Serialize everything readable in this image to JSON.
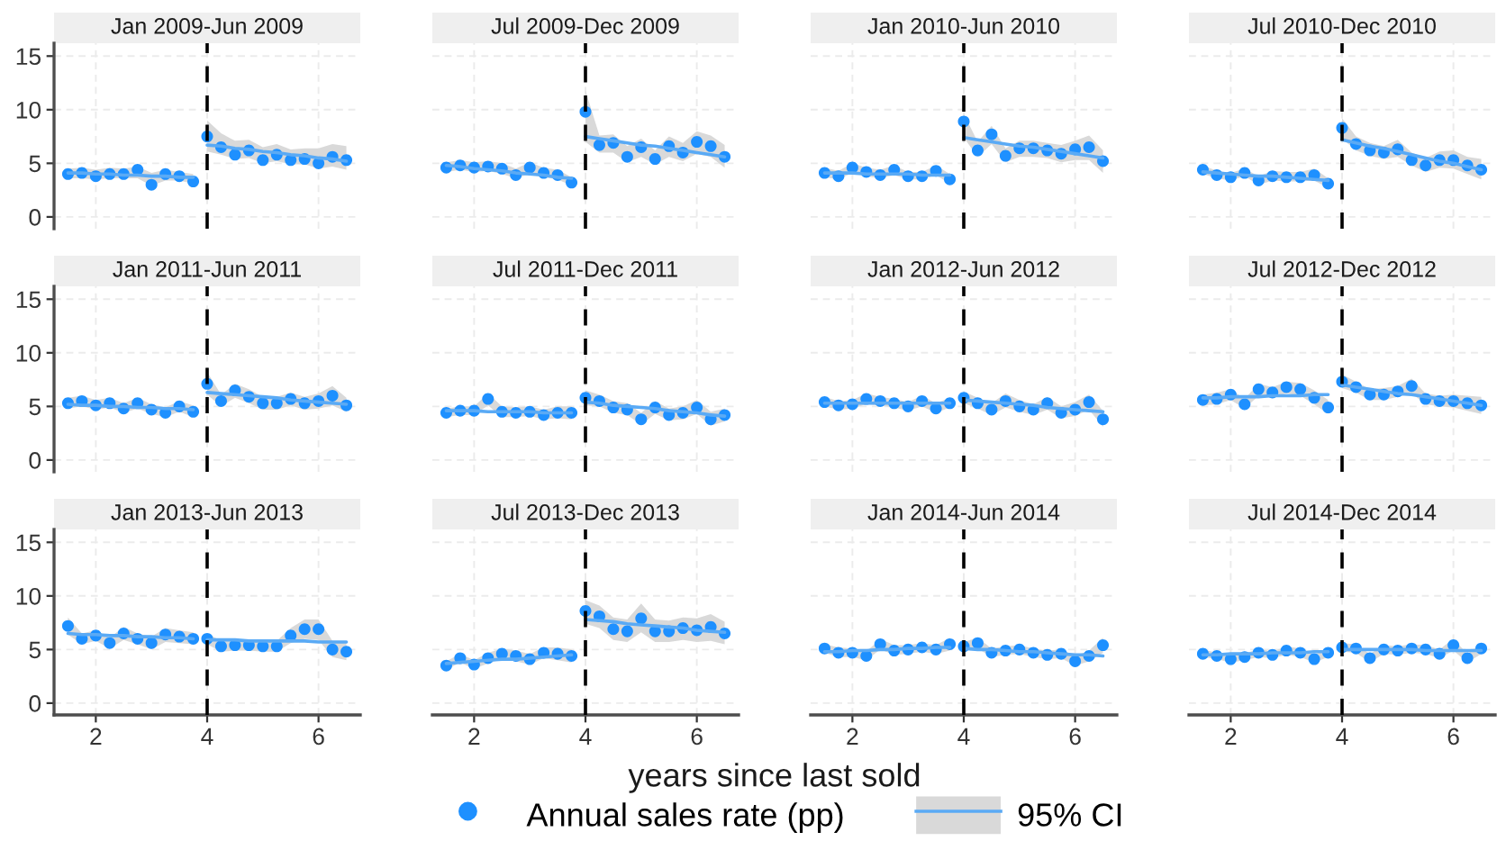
{
  "chart_data": [
    {
      "type": "scatter",
      "title": "Jan 2009-Jun 2009",
      "legend": "bottom",
      "xlim": [
        1.25,
        6.75
      ],
      "ylim": [
        -1.1,
        16.2
      ],
      "xticks": [
        2,
        4,
        6
      ],
      "yticks": [
        0,
        5,
        10,
        15
      ],
      "grid": true,
      "tick_labels": "y",
      "ref_lines": [
        {
          "axis": "x",
          "value": 4,
          "color": "#000000",
          "line_style": "dashed"
        }
      ],
      "series": [
        {
          "name": "Annual sales rate (pp)",
          "color": "#1e90ff",
          "marker": "circle",
          "x": [
            1.5,
            1.75,
            2,
            2.25,
            2.5,
            2.75,
            3,
            3.25,
            3.5,
            3.75,
            4,
            4.25,
            4.5,
            4.75,
            5,
            5.25,
            5.5,
            5.75,
            6,
            6.25,
            6.5
          ],
          "values": [
            4.0,
            4.1,
            3.8,
            4.0,
            4.0,
            4.4,
            3.0,
            4.0,
            3.8,
            3.3,
            7.5,
            6.5,
            5.8,
            6.2,
            5.3,
            5.8,
            5.3,
            5.4,
            5.0,
            5.6,
            5.3
          ]
        },
        {
          "name": "95% CI",
          "type": "line",
          "color": "#5aaaf5",
          "x": [
            1.5,
            1.75,
            2,
            2.25,
            2.5,
            2.75,
            3,
            3.25,
            3.5,
            3.75
          ],
          "values": [
            4.1,
            4.1,
            4.0,
            4.0,
            3.9,
            3.9,
            3.8,
            3.8,
            3.7,
            3.7
          ],
          "lower": [
            3.6,
            3.6,
            3.5,
            3.6,
            3.6,
            3.6,
            2.9,
            3.4,
            3.4,
            3.1
          ],
          "upper": [
            4.5,
            4.6,
            4.4,
            4.6,
            4.5,
            4.7,
            4.1,
            4.4,
            4.2,
            4.0
          ]
        },
        {
          "type": "line",
          "color": "#5aaaf5",
          "x": [
            4,
            4.25,
            4.5,
            4.75,
            5,
            5.25,
            5.5,
            5.75,
            6,
            6.25,
            6.5
          ],
          "values": [
            6.7,
            6.6,
            6.4,
            6.3,
            6.1,
            6.0,
            5.8,
            5.7,
            5.5,
            5.4,
            5.2
          ],
          "lower": [
            6.1,
            5.8,
            5.4,
            5.5,
            5.0,
            5.2,
            4.9,
            4.9,
            4.5,
            4.7,
            4.4
          ],
          "upper": [
            9.0,
            7.8,
            7.1,
            7.2,
            6.5,
            6.8,
            6.3,
            6.4,
            6.4,
            6.8,
            6.6
          ]
        }
      ]
    },
    {
      "type": "scatter",
      "title": "Jul 2009-Dec 2009",
      "xlim": [
        1.25,
        6.75
      ],
      "ylim": [
        -1.1,
        16.2
      ],
      "xticks": [
        2,
        4,
        6
      ],
      "yticks": [
        0,
        5,
        10,
        15
      ],
      "grid": true,
      "tick_labels": false,
      "ref_lines": [
        {
          "axis": "x",
          "value": 4,
          "color": "#000000",
          "line_style": "dashed"
        }
      ],
      "series": [
        {
          "color": "#1e90ff",
          "marker": "circle",
          "x": [
            1.5,
            1.75,
            2,
            2.25,
            2.5,
            2.75,
            3,
            3.25,
            3.5,
            3.75,
            4,
            4.25,
            4.5,
            4.75,
            5,
            5.25,
            5.5,
            5.75,
            6,
            6.25,
            6.5
          ],
          "values": [
            4.6,
            4.8,
            4.6,
            4.7,
            4.5,
            3.9,
            4.6,
            4.1,
            3.9,
            3.2,
            9.8,
            6.7,
            6.9,
            5.6,
            6.5,
            5.4,
            6.6,
            6.0,
            7.0,
            6.6,
            5.6
          ]
        },
        {
          "type": "line",
          "color": "#5aaaf5",
          "x": [
            1.5,
            1.75,
            2,
            2.25,
            2.5,
            2.75,
            3,
            3.25,
            3.5,
            3.75
          ],
          "values": [
            4.8,
            4.7,
            4.5,
            4.4,
            4.3,
            4.1,
            4.0,
            3.9,
            3.7,
            3.6
          ],
          "lower": [
            4.2,
            4.4,
            4.2,
            4.3,
            4.0,
            3.6,
            4.0,
            3.7,
            3.5,
            2.9
          ],
          "upper": [
            5.1,
            5.3,
            5.1,
            5.2,
            5.0,
            4.5,
            5.1,
            4.6,
            4.4,
            3.7
          ]
        },
        {
          "type": "line",
          "color": "#5aaaf5",
          "x": [
            4,
            4.25,
            4.5,
            4.75,
            5,
            5.25,
            5.5,
            5.75,
            6,
            6.25,
            6.5
          ],
          "values": [
            7.5,
            7.3,
            7.1,
            6.9,
            6.7,
            6.6,
            6.4,
            6.2,
            6.0,
            5.8,
            5.6
          ],
          "lower": [
            7.0,
            6.0,
            6.0,
            5.1,
            5.6,
            4.9,
            5.6,
            5.2,
            5.9,
            5.6,
            4.6
          ],
          "upper": [
            11.8,
            7.6,
            7.7,
            6.6,
            7.3,
            6.2,
            7.5,
            6.9,
            8.0,
            7.6,
            6.7
          ]
        }
      ]
    },
    {
      "type": "scatter",
      "title": "Jan 2010-Jun 2010",
      "xlim": [
        1.25,
        6.75
      ],
      "ylim": [
        -1.1,
        16.2
      ],
      "xticks": [
        2,
        4,
        6
      ],
      "yticks": [
        0,
        5,
        10,
        15
      ],
      "grid": true,
      "tick_labels": false,
      "ref_lines": [
        {
          "axis": "x",
          "value": 4,
          "color": "#000000",
          "line_style": "dashed"
        }
      ],
      "series": [
        {
          "color": "#1e90ff",
          "marker": "circle",
          "x": [
            1.5,
            1.75,
            2,
            2.25,
            2.5,
            2.75,
            3,
            3.25,
            3.5,
            3.75,
            4,
            4.25,
            4.5,
            4.75,
            5,
            5.25,
            5.5,
            5.75,
            6,
            6.25,
            6.5
          ],
          "values": [
            4.1,
            3.8,
            4.6,
            4.2,
            3.9,
            4.4,
            3.8,
            3.8,
            4.3,
            3.5,
            8.9,
            6.2,
            7.7,
            5.7,
            6.4,
            6.4,
            6.2,
            5.9,
            6.3,
            6.5,
            5.2
          ]
        },
        {
          "type": "line",
          "color": "#5aaaf5",
          "x": [
            1.5,
            1.75,
            2,
            2.25,
            2.5,
            2.75,
            3,
            3.25,
            3.5,
            3.75
          ],
          "values": [
            4.1,
            4.1,
            4.1,
            4.0,
            4.0,
            4.0,
            4.0,
            3.9,
            3.9,
            3.9
          ],
          "lower": [
            3.7,
            3.5,
            4.1,
            3.8,
            3.6,
            3.9,
            3.5,
            3.5,
            3.9,
            3.1
          ],
          "upper": [
            4.6,
            4.3,
            5.0,
            4.6,
            4.4,
            4.8,
            4.2,
            4.2,
            4.8,
            4.0
          ]
        },
        {
          "type": "line",
          "color": "#5aaaf5",
          "x": [
            4,
            4.25,
            4.5,
            4.75,
            5,
            5.25,
            5.5,
            5.75,
            6,
            6.25,
            6.5
          ],
          "values": [
            7.4,
            7.2,
            7.0,
            6.8,
            6.6,
            6.5,
            6.3,
            6.1,
            5.9,
            5.7,
            5.5
          ],
          "lower": [
            7.4,
            5.6,
            6.8,
            5.1,
            5.6,
            5.6,
            5.5,
            5.1,
            5.3,
            5.3,
            4.1
          ],
          "upper": [
            9.6,
            7.0,
            8.5,
            6.4,
            7.1,
            7.1,
            6.9,
            6.7,
            7.1,
            7.6,
            6.2
          ]
        }
      ]
    },
    {
      "type": "scatter",
      "title": "Jul 2010-Dec 2010",
      "xlim": [
        1.25,
        6.75
      ],
      "ylim": [
        -1.1,
        16.2
      ],
      "xticks": [
        2,
        4,
        6
      ],
      "yticks": [
        0,
        5,
        10,
        15
      ],
      "grid": true,
      "tick_labels": false,
      "ref_lines": [
        {
          "axis": "x",
          "value": 4,
          "color": "#000000",
          "line_style": "dashed"
        }
      ],
      "series": [
        {
          "color": "#1e90ff",
          "marker": "circle",
          "x": [
            1.5,
            1.75,
            2,
            2.25,
            2.5,
            2.75,
            3,
            3.25,
            3.5,
            3.75,
            4,
            4.25,
            4.5,
            4.75,
            5,
            5.25,
            5.5,
            5.75,
            6,
            6.25,
            6.5
          ],
          "values": [
            4.4,
            3.9,
            3.7,
            4.1,
            3.4,
            3.8,
            3.7,
            3.7,
            3.9,
            3.1,
            8.3,
            6.8,
            6.2,
            6.0,
            6.3,
            5.3,
            4.8,
            5.3,
            5.3,
            4.8,
            4.4
          ]
        },
        {
          "type": "line",
          "color": "#5aaaf5",
          "x": [
            1.5,
            1.75,
            2,
            2.25,
            2.5,
            2.75,
            3,
            3.25,
            3.5,
            3.75
          ],
          "values": [
            4.2,
            4.1,
            4.0,
            3.9,
            3.8,
            3.8,
            3.7,
            3.6,
            3.5,
            3.4
          ],
          "lower": [
            4.0,
            3.6,
            3.4,
            3.8,
            3.0,
            3.4,
            3.3,
            3.3,
            3.4,
            2.7
          ],
          "upper": [
            4.8,
            4.3,
            4.1,
            4.5,
            3.8,
            4.3,
            4.2,
            4.2,
            4.5,
            3.6
          ]
        },
        {
          "type": "line",
          "color": "#5aaaf5",
          "x": [
            4,
            4.25,
            4.5,
            4.75,
            5,
            5.25,
            5.5,
            5.75,
            6,
            6.25,
            6.5
          ],
          "values": [
            7.2,
            6.9,
            6.6,
            6.4,
            6.1,
            5.8,
            5.5,
            5.2,
            5.0,
            4.7,
            4.4
          ],
          "lower": [
            7.3,
            6.2,
            5.7,
            5.4,
            5.6,
            4.8,
            4.2,
            4.6,
            4.5,
            4.0,
            3.5
          ],
          "upper": [
            9.2,
            7.5,
            6.9,
            6.6,
            7.2,
            6.0,
            5.5,
            6.1,
            6.2,
            5.6,
            5.4
          ]
        }
      ]
    },
    {
      "type": "scatter",
      "title": "Jan 2011-Jun 2011",
      "xlim": [
        1.25,
        6.75
      ],
      "ylim": [
        -1.1,
        16.2
      ],
      "xticks": [
        2,
        4,
        6
      ],
      "yticks": [
        0,
        5,
        10,
        15
      ],
      "grid": true,
      "tick_labels": "y",
      "ref_lines": [
        {
          "axis": "x",
          "value": 4,
          "color": "#000000",
          "line_style": "dashed"
        }
      ],
      "series": [
        {
          "color": "#1e90ff",
          "marker": "circle",
          "x": [
            1.5,
            1.75,
            2,
            2.25,
            2.5,
            2.75,
            3,
            3.25,
            3.5,
            3.75,
            4,
            4.25,
            4.5,
            4.75,
            5,
            5.25,
            5.5,
            5.75,
            6,
            6.25,
            6.5
          ],
          "values": [
            5.3,
            5.5,
            5.1,
            5.3,
            4.8,
            5.3,
            4.7,
            4.4,
            5.0,
            4.5,
            7.1,
            5.5,
            6.5,
            5.9,
            5.3,
            5.3,
            5.7,
            5.3,
            5.5,
            6.0,
            5.1
          ]
        },
        {
          "type": "line",
          "color": "#5aaaf5",
          "x": [
            1.5,
            1.75,
            2,
            2.25,
            2.5,
            2.75,
            3,
            3.25,
            3.5,
            3.75
          ],
          "values": [
            5.2,
            5.1,
            5.1,
            5.0,
            5.0,
            4.9,
            4.9,
            4.8,
            4.8,
            4.7
          ],
          "lower": [
            4.8,
            5.0,
            4.7,
            4.9,
            4.4,
            4.8,
            4.3,
            4.0,
            4.5,
            4.0
          ],
          "upper": [
            5.8,
            6.0,
            5.6,
            5.8,
            5.3,
            5.8,
            5.2,
            4.9,
            5.5,
            5.1
          ]
        },
        {
          "type": "line",
          "color": "#5aaaf5",
          "x": [
            4,
            4.25,
            4.5,
            4.75,
            5,
            5.25,
            5.5,
            5.75,
            6,
            6.25,
            6.5
          ],
          "values": [
            6.3,
            6.2,
            6.1,
            6.0,
            5.9,
            5.8,
            5.6,
            5.5,
            5.4,
            5.3,
            5.2
          ],
          "lower": [
            6.1,
            5.0,
            5.8,
            5.3,
            4.7,
            4.7,
            5.1,
            4.7,
            4.8,
            5.1,
            4.5
          ],
          "upper": [
            8.2,
            6.1,
            7.1,
            6.6,
            5.9,
            5.9,
            6.3,
            5.9,
            6.2,
            6.9,
            5.8
          ]
        }
      ]
    },
    {
      "type": "scatter",
      "title": "Jul 2011-Dec 2011",
      "xlim": [
        1.25,
        6.75
      ],
      "ylim": [
        -1.1,
        16.2
      ],
      "xticks": [
        2,
        4,
        6
      ],
      "yticks": [
        0,
        5,
        10,
        15
      ],
      "grid": true,
      "tick_labels": false,
      "ref_lines": [
        {
          "axis": "x",
          "value": 4,
          "color": "#000000",
          "line_style": "dashed"
        }
      ],
      "series": [
        {
          "color": "#1e90ff",
          "marker": "circle",
          "x": [
            1.5,
            1.75,
            2,
            2.25,
            2.5,
            2.75,
            3,
            3.25,
            3.5,
            3.75,
            4,
            4.25,
            4.5,
            4.75,
            5,
            5.25,
            5.5,
            5.75,
            6,
            6.25,
            6.5
          ],
          "values": [
            4.4,
            4.6,
            4.6,
            5.7,
            4.5,
            4.4,
            4.5,
            4.2,
            4.4,
            4.4,
            5.8,
            5.5,
            4.9,
            4.7,
            3.8,
            4.9,
            4.2,
            4.4,
            4.9,
            3.8,
            4.2
          ]
        },
        {
          "type": "line",
          "color": "#5aaaf5",
          "x": [
            1.5,
            1.75,
            2,
            2.25,
            2.5,
            2.75,
            3,
            3.25,
            3.5,
            3.75
          ],
          "values": [
            4.6,
            4.6,
            4.6,
            4.5,
            4.5,
            4.5,
            4.5,
            4.4,
            4.4,
            4.4
          ],
          "lower": [
            4.0,
            4.2,
            4.2,
            5.1,
            4.0,
            4.0,
            4.1,
            3.8,
            3.9,
            3.8
          ],
          "upper": [
            4.8,
            5.0,
            5.0,
            6.2,
            5.0,
            4.9,
            5.0,
            4.7,
            5.0,
            5.0
          ]
        },
        {
          "type": "line",
          "color": "#5aaaf5",
          "x": [
            4,
            4.25,
            4.5,
            4.75,
            5,
            5.25,
            5.5,
            5.75,
            6,
            6.25,
            6.5
          ],
          "values": [
            5.4,
            5.3,
            5.1,
            5.0,
            4.9,
            4.8,
            4.6,
            4.5,
            4.4,
            4.2,
            4.1
          ],
          "lower": [
            5.1,
            5.0,
            4.4,
            4.2,
            3.3,
            4.3,
            3.7,
            3.8,
            4.3,
            3.2,
            3.6
          ],
          "upper": [
            6.5,
            6.1,
            5.5,
            5.3,
            4.4,
            5.5,
            4.8,
            5.0,
            5.6,
            4.5,
            4.8
          ]
        }
      ]
    },
    {
      "type": "scatter",
      "title": "Jan 2012-Jun 2012",
      "xlim": [
        1.25,
        6.75
      ],
      "ylim": [
        -1.1,
        16.2
      ],
      "xticks": [
        2,
        4,
        6
      ],
      "yticks": [
        0,
        5,
        10,
        15
      ],
      "grid": true,
      "tick_labels": false,
      "ref_lines": [
        {
          "axis": "x",
          "value": 4,
          "color": "#000000",
          "line_style": "dashed"
        }
      ],
      "series": [
        {
          "color": "#1e90ff",
          "marker": "circle",
          "x": [
            1.5,
            1.75,
            2,
            2.25,
            2.5,
            2.75,
            3,
            3.25,
            3.5,
            3.75,
            4,
            4.25,
            4.5,
            4.75,
            5,
            5.25,
            5.5,
            5.75,
            6,
            6.25,
            6.5
          ],
          "values": [
            5.4,
            5.1,
            5.2,
            5.7,
            5.5,
            5.3,
            5.0,
            5.5,
            4.8,
            5.3,
            5.8,
            5.3,
            4.7,
            5.5,
            5.0,
            4.7,
            5.3,
            4.4,
            4.7,
            5.4,
            3.8
          ]
        },
        {
          "type": "line",
          "color": "#5aaaf5",
          "x": [
            1.5,
            1.75,
            2,
            2.25,
            2.5,
            2.75,
            3,
            3.25,
            3.5,
            3.75
          ],
          "values": [
            5.3,
            5.3,
            5.3,
            5.3,
            5.3,
            5.3,
            5.3,
            5.3,
            5.3,
            5.3
          ],
          "lower": [
            5.0,
            4.7,
            4.8,
            5.2,
            5.1,
            4.9,
            4.6,
            5.0,
            4.4,
            4.9
          ],
          "upper": [
            5.9,
            5.5,
            5.6,
            6.2,
            5.9,
            5.7,
            5.4,
            6.0,
            5.3,
            5.8
          ]
        },
        {
          "type": "line",
          "color": "#5aaaf5",
          "x": [
            4,
            4.25,
            4.5,
            4.75,
            5,
            5.25,
            5.5,
            5.75,
            6,
            6.25,
            6.5
          ],
          "values": [
            5.6,
            5.5,
            5.4,
            5.3,
            5.2,
            5.1,
            4.9,
            4.8,
            4.7,
            4.6,
            4.5
          ],
          "lower": [
            5.3,
            4.8,
            4.2,
            4.9,
            4.5,
            4.2,
            4.7,
            3.9,
            4.1,
            4.7,
            3.1
          ],
          "upper": [
            6.4,
            5.8,
            5.3,
            6.2,
            5.6,
            5.2,
            5.9,
            5.0,
            5.4,
            6.1,
            4.6
          ]
        }
      ]
    },
    {
      "type": "scatter",
      "title": "Jul 2012-Dec 2012",
      "xlim": [
        1.25,
        6.75
      ],
      "ylim": [
        -1.1,
        16.2
      ],
      "xticks": [
        2,
        4,
        6
      ],
      "yticks": [
        0,
        5,
        10,
        15
      ],
      "grid": true,
      "tick_labels": false,
      "ref_lines": [
        {
          "axis": "x",
          "value": 4,
          "color": "#000000",
          "line_style": "dashed"
        }
      ],
      "series": [
        {
          "color": "#1e90ff",
          "marker": "circle",
          "x": [
            1.5,
            1.75,
            2,
            2.25,
            2.5,
            2.75,
            3,
            3.25,
            3.5,
            3.75,
            4,
            4.25,
            4.5,
            4.75,
            5,
            5.25,
            5.5,
            5.75,
            6,
            6.25,
            6.5
          ],
          "values": [
            5.6,
            5.7,
            6.1,
            5.2,
            6.6,
            6.3,
            6.8,
            6.6,
            5.8,
            4.9,
            7.3,
            6.8,
            6.1,
            6.1,
            6.4,
            6.9,
            5.7,
            5.5,
            5.5,
            5.3,
            5.1
          ]
        },
        {
          "type": "line",
          "color": "#5aaaf5",
          "x": [
            1.5,
            1.75,
            2,
            2.25,
            2.5,
            2.75,
            3,
            3.25,
            3.5,
            3.75
          ],
          "values": [
            5.8,
            5.8,
            5.9,
            5.9,
            5.9,
            6.0,
            6.0,
            6.0,
            6.1,
            6.1
          ],
          "lower": [
            5.1,
            5.2,
            5.6,
            4.8,
            6.0,
            5.8,
            6.2,
            6.0,
            5.2,
            4.3
          ],
          "upper": [
            6.1,
            6.3,
            6.6,
            5.7,
            7.1,
            6.8,
            7.3,
            7.2,
            6.5,
            5.6
          ]
        },
        {
          "type": "line",
          "color": "#5aaaf5",
          "x": [
            4,
            4.25,
            4.5,
            4.75,
            5,
            5.25,
            5.5,
            5.75,
            6,
            6.25,
            6.5
          ],
          "values": [
            7.0,
            6.8,
            6.6,
            6.4,
            6.2,
            6.1,
            5.9,
            5.7,
            5.5,
            5.3,
            5.1
          ],
          "lower": [
            6.7,
            6.3,
            5.6,
            5.6,
            5.9,
            6.2,
            5.2,
            5.0,
            4.9,
            4.6,
            4.3
          ],
          "upper": [
            8.0,
            7.3,
            6.6,
            6.7,
            6.9,
            7.6,
            6.2,
            6.0,
            6.1,
            6.0,
            5.9
          ]
        }
      ]
    },
    {
      "type": "scatter",
      "title": "Jan 2013-Jun 2013",
      "xlim": [
        1.25,
        6.75
      ],
      "ylim": [
        -1.1,
        16.2
      ],
      "xticks": [
        2,
        4,
        6
      ],
      "yticks": [
        0,
        5,
        10,
        15
      ],
      "grid": true,
      "ref_lines": [
        {
          "axis": "x",
          "value": 4,
          "color": "#000000",
          "line_style": "dashed"
        }
      ],
      "series": [
        {
          "color": "#1e90ff",
          "marker": "circle",
          "x": [
            1.5,
            1.75,
            2,
            2.25,
            2.5,
            2.75,
            3,
            3.25,
            3.5,
            3.75,
            4,
            4.25,
            4.5,
            4.75,
            5,
            5.25,
            5.5,
            5.75,
            6,
            6.25,
            6.5
          ],
          "values": [
            7.2,
            6.0,
            6.3,
            5.6,
            6.5,
            6.0,
            5.6,
            6.4,
            6.2,
            6.0,
            6.0,
            5.3,
            5.4,
            5.4,
            5.3,
            5.3,
            6.3,
            6.9,
            6.9,
            5.0,
            4.8
          ]
        },
        {
          "type": "line",
          "color": "#5aaaf5",
          "x": [
            1.5,
            1.75,
            2,
            2.25,
            2.5,
            2.75,
            3,
            3.25,
            3.5,
            3.75
          ],
          "values": [
            6.5,
            6.4,
            6.4,
            6.3,
            6.3,
            6.2,
            6.2,
            6.1,
            6.1,
            6.0
          ],
          "lower": [
            6.4,
            5.5,
            5.8,
            5.1,
            5.9,
            5.5,
            5.0,
            5.7,
            5.6,
            5.5
          ],
          "upper": [
            8.0,
            6.5,
            6.8,
            6.1,
            7.1,
            6.5,
            6.2,
            7.0,
            6.8,
            6.6
          ]
        },
        {
          "type": "line",
          "color": "#5aaaf5",
          "x": [
            4,
            4.25,
            4.5,
            4.75,
            5,
            5.25,
            5.5,
            5.75,
            6,
            6.25,
            6.5
          ],
          "values": [
            5.9,
            5.9,
            5.9,
            5.8,
            5.8,
            5.8,
            5.8,
            5.8,
            5.7,
            5.7,
            5.7
          ],
          "lower": [
            5.5,
            4.8,
            4.9,
            4.9,
            4.8,
            4.8,
            5.6,
            6.0,
            5.9,
            4.3,
            4.0
          ],
          "upper": [
            6.5,
            5.8,
            5.9,
            5.9,
            5.8,
            5.8,
            7.0,
            7.8,
            7.8,
            5.8,
            5.6
          ]
        }
      ]
    },
    {
      "type": "scatter",
      "title": "Jul 2013-Dec 2013",
      "annotations": [
        "years since last sold"
      ],
      "xlim": [
        1.25,
        6.75
      ],
      "ylim": [
        -1.1,
        16.2
      ],
      "xticks": [
        2,
        4,
        6
      ],
      "yticks": [
        0,
        5,
        10,
        15
      ],
      "grid": true,
      "tick_labels": "x",
      "ref_lines": [
        {
          "axis": "x",
          "value": 4,
          "color": "#000000",
          "line_style": "dashed"
        }
      ],
      "series": [
        {
          "color": "#1e90ff",
          "marker": "circle",
          "x": [
            1.5,
            1.75,
            2,
            2.25,
            2.5,
            2.75,
            3,
            3.25,
            3.5,
            3.75,
            4,
            4.25,
            4.5,
            4.75,
            5,
            5.25,
            5.5,
            5.75,
            6,
            6.25,
            6.5
          ],
          "values": [
            3.5,
            4.2,
            3.6,
            4.2,
            4.6,
            4.4,
            4.1,
            4.7,
            4.6,
            4.4,
            8.6,
            8.1,
            6.9,
            6.7,
            7.9,
            6.7,
            6.7,
            7.0,
            6.8,
            7.1,
            6.5
          ]
        },
        {
          "type": "line",
          "color": "#5aaaf5",
          "x": [
            1.5,
            1.75,
            2,
            2.25,
            2.5,
            2.75,
            3,
            3.25,
            3.5,
            3.75
          ],
          "values": [
            3.7,
            3.8,
            3.9,
            4.0,
            4.1,
            4.1,
            4.2,
            4.3,
            4.4,
            4.5
          ],
          "lower": [
            3.1,
            3.8,
            3.2,
            3.7,
            4.1,
            3.9,
            3.6,
            4.2,
            4.0,
            3.8
          ],
          "upper": [
            3.9,
            4.6,
            4.0,
            4.7,
            5.1,
            4.9,
            4.6,
            5.2,
            5.2,
            5.0
          ]
        },
        {
          "type": "line",
          "color": "#5aaaf5",
          "x": [
            4,
            4.25,
            4.5,
            4.75,
            5,
            5.25,
            5.5,
            5.75,
            6,
            6.25,
            6.5
          ],
          "values": [
            7.8,
            7.7,
            7.6,
            7.4,
            7.3,
            7.2,
            7.1,
            7.0,
            6.8,
            6.7,
            6.6
          ],
          "lower": [
            7.4,
            7.0,
            5.9,
            5.7,
            6.6,
            5.7,
            5.7,
            5.9,
            5.7,
            5.8,
            5.5
          ],
          "upper": [
            9.6,
            9.1,
            8.0,
            7.8,
            9.3,
            7.8,
            7.7,
            8.0,
            7.9,
            8.3,
            7.6
          ]
        }
      ]
    },
    {
      "type": "scatter",
      "title": "Jan 2014-Jun 2014",
      "xlim": [
        1.25,
        6.75
      ],
      "ylim": [
        -1.1,
        16.2
      ],
      "xticks": [
        2,
        4,
        6
      ],
      "yticks": [
        0,
        5,
        10,
        15
      ],
      "grid": true,
      "tick_labels": "x",
      "ref_lines": [
        {
          "axis": "x",
          "value": 4,
          "color": "#000000",
          "line_style": "dashed"
        }
      ],
      "series": [
        {
          "color": "#1e90ff",
          "marker": "circle",
          "x": [
            1.5,
            1.75,
            2,
            2.25,
            2.5,
            2.75,
            3,
            3.25,
            3.5,
            3.75,
            4,
            4.25,
            4.5,
            4.75,
            5,
            5.25,
            5.5,
            5.75,
            6,
            6.25,
            6.5
          ],
          "values": [
            5.1,
            4.7,
            4.7,
            4.4,
            5.5,
            4.9,
            5.0,
            5.2,
            5.0,
            5.5,
            5.3,
            5.6,
            4.7,
            4.9,
            5.0,
            4.7,
            4.5,
            4.6,
            3.9,
            4.4,
            5.4
          ]
        },
        {
          "type": "line",
          "color": "#5aaaf5",
          "x": [
            1.5,
            1.75,
            2,
            2.25,
            2.5,
            2.75,
            3,
            3.25,
            3.5,
            3.75
          ],
          "values": [
            4.8,
            4.8,
            4.9,
            4.9,
            5.0,
            5.0,
            5.1,
            5.1,
            5.2,
            5.2
          ],
          "lower": [
            4.7,
            4.3,
            4.3,
            4.0,
            5.0,
            4.5,
            4.6,
            4.8,
            4.6,
            4.9
          ],
          "upper": [
            5.5,
            5.2,
            5.1,
            4.8,
            6.0,
            5.4,
            5.4,
            5.6,
            5.4,
            6.1
          ]
        },
        {
          "type": "line",
          "color": "#5aaaf5",
          "x": [
            4,
            4.25,
            4.5,
            4.75,
            5,
            5.25,
            5.5,
            5.75,
            6,
            6.25,
            6.5
          ],
          "values": [
            5.1,
            5.0,
            5.0,
            4.9,
            4.8,
            4.8,
            4.7,
            4.6,
            4.5,
            4.5,
            4.4
          ],
          "lower": [
            4.9,
            5.1,
            4.3,
            4.5,
            4.6,
            4.3,
            4.1,
            4.2,
            3.5,
            3.9,
            4.7
          ],
          "upper": [
            5.7,
            6.1,
            5.1,
            5.3,
            5.4,
            5.1,
            4.9,
            5.0,
            4.4,
            4.9,
            6.1
          ]
        }
      ]
    },
    {
      "type": "scatter",
      "title": "Jul 2014-Dec 2014",
      "xlim": [
        1.25,
        6.75
      ],
      "ylim": [
        -1.1,
        16.2
      ],
      "xticks": [
        2,
        4,
        6
      ],
      "yticks": [
        0,
        5,
        10,
        15
      ],
      "grid": true,
      "tick_labels": "x",
      "ref_lines": [
        {
          "axis": "x",
          "value": 4,
          "color": "#000000",
          "line_style": "dashed"
        }
      ],
      "series": [
        {
          "color": "#1e90ff",
          "marker": "circle",
          "x": [
            1.5,
            1.75,
            2,
            2.25,
            2.5,
            2.75,
            3,
            3.25,
            3.5,
            3.75,
            4,
            4.25,
            4.5,
            4.75,
            5,
            5.25,
            5.5,
            5.75,
            6,
            6.25,
            6.5
          ],
          "values": [
            4.6,
            4.4,
            4.1,
            4.3,
            4.7,
            4.5,
            4.9,
            4.7,
            4.1,
            4.7,
            5.2,
            5.1,
            4.2,
            5.0,
            4.9,
            5.1,
            5.0,
            4.6,
            5.4,
            4.2,
            5.1
          ]
        },
        {
          "type": "line",
          "color": "#5aaaf5",
          "x": [
            1.5,
            1.75,
            2,
            2.25,
            2.5,
            2.75,
            3,
            3.25,
            3.5,
            3.75
          ],
          "values": [
            4.5,
            4.5,
            4.6,
            4.6,
            4.6,
            4.7,
            4.7,
            4.7,
            4.8,
            4.8
          ],
          "lower": [
            4.3,
            4.1,
            3.8,
            4.0,
            4.3,
            4.2,
            4.5,
            4.3,
            3.8,
            4.3
          ],
          "upper": [
            5.0,
            4.7,
            4.4,
            4.6,
            5.1,
            4.8,
            5.3,
            5.1,
            4.5,
            5.1
          ]
        },
        {
          "type": "line",
          "color": "#5aaaf5",
          "x": [
            4,
            4.25,
            4.5,
            4.75,
            5,
            5.25,
            5.5,
            5.75,
            6,
            6.25,
            6.5
          ],
          "values": [
            5.0,
            5.0,
            5.0,
            5.0,
            5.0,
            5.0,
            4.9,
            4.9,
            4.9,
            4.9,
            4.9
          ],
          "lower": [
            4.8,
            4.7,
            3.8,
            4.6,
            4.5,
            4.7,
            4.6,
            4.2,
            4.9,
            3.8,
            4.6
          ],
          "upper": [
            5.6,
            5.5,
            4.6,
            5.4,
            5.3,
            5.5,
            5.4,
            5.0,
            6.0,
            4.6,
            5.6
          ]
        }
      ]
    }
  ]
}
